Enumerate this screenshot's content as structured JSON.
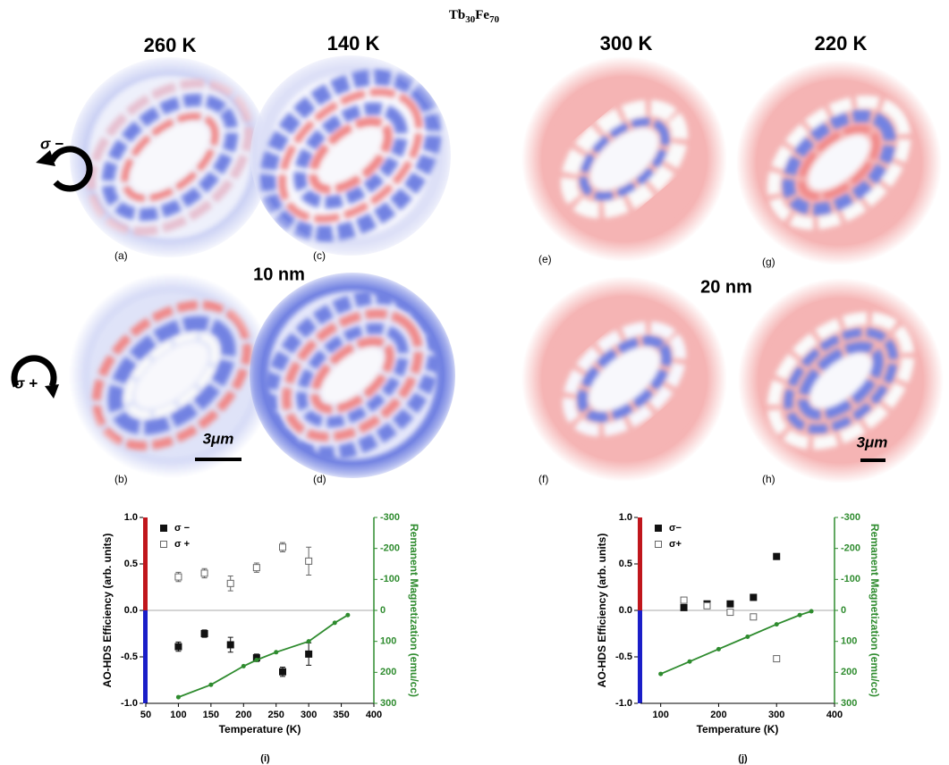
{
  "figure": {
    "title": [
      "Tb",
      "30",
      "Fe",
      "70"
    ],
    "temperatures": [
      "260 K",
      "140 K",
      "300 K",
      "220 K"
    ],
    "thicknesses": [
      "10 nm",
      "20 nm"
    ],
    "panel_labels": [
      "(a)",
      "(b)",
      "(c)",
      "(d)",
      "(e)",
      "(f)",
      "(g)",
      "(h)"
    ],
    "helicity_labels": [
      "σ −",
      "σ +"
    ],
    "scale_bars": [
      "3μm",
      "3μm"
    ]
  },
  "chart_data": [
    {
      "type": "scatter",
      "caption": "(i)",
      "xlabel": "Temperature (K)",
      "ylabel": "AO-HDS Efficiency (arb. units)",
      "y2label": "Remanent Magnetization (emu/cc)",
      "xlim": [
        50,
        400
      ],
      "xticks": [
        50,
        100,
        150,
        200,
        250,
        300,
        350,
        400
      ],
      "ylim": [
        -1,
        1
      ],
      "yticks": [
        {
          "value": -1,
          "label": "-1.0"
        },
        -0.5,
        {
          "value": 0,
          "label": "0.0"
        },
        0.5,
        {
          "value": 1,
          "label": "1.0"
        }
      ],
      "y2lim": [
        300,
        -300
      ],
      "y2ticks": [
        -300,
        -200,
        -100,
        0,
        100,
        200,
        300
      ],
      "zero_line": true,
      "legend": "upper left",
      "series": [
        {
          "name": "σ −",
          "marker": "filled-square",
          "color": "#111111",
          "x": [
            100,
            140,
            180,
            220,
            260,
            300
          ],
          "values": [
            -0.39,
            -0.25,
            -0.37,
            -0.51,
            -0.66,
            -0.47
          ],
          "errors": [
            0.05,
            0.04,
            0.08,
            0.04,
            0.05,
            0.12
          ]
        },
        {
          "name": "σ +",
          "marker": "open-square",
          "color": "#666666",
          "x": [
            100,
            140,
            180,
            220,
            260,
            300
          ],
          "values": [
            0.36,
            0.4,
            0.29,
            0.46,
            0.68,
            0.53
          ],
          "errors": [
            0.05,
            0.05,
            0.08,
            0.05,
            0.05,
            0.15
          ]
        },
        {
          "marker": "line",
          "axis": "y2",
          "color": "#2e8b2e",
          "x": [
            100,
            150,
            200,
            220,
            250,
            300,
            340,
            360
          ],
          "values": [
            280,
            240,
            180,
            160,
            135,
            100,
            40,
            15
          ]
        }
      ]
    },
    {
      "type": "scatter",
      "caption": "(j)",
      "xlabel": "Temperature (K)",
      "ylabel": "AO-HDS Efficiency (arb. units)",
      "y2label": "Remanent Magnetization (emu/cc)",
      "xlim": [
        65,
        400
      ],
      "xticks": [
        100,
        200,
        300,
        400
      ],
      "ylim": [
        -1,
        1
      ],
      "yticks": [
        {
          "value": -1,
          "label": "-1.0"
        },
        -0.5,
        {
          "value": 0,
          "label": "0.0"
        },
        0.5,
        {
          "value": 1,
          "label": "1.0"
        }
      ],
      "y2lim": [
        300,
        -300
      ],
      "y2ticks": [
        -300,
        -200,
        -100,
        0,
        100,
        200,
        300
      ],
      "zero_line": true,
      "legend": "upper left",
      "series": [
        {
          "name": "σ−",
          "marker": "filled-square",
          "color": "#111111",
          "x": [
            140,
            180,
            220,
            260,
            300
          ],
          "values": [
            0.03,
            0.07,
            0.07,
            0.14,
            0.58
          ]
        },
        {
          "name": "σ+",
          "marker": "open-square",
          "color": "#666666",
          "x": [
            140,
            180,
            220,
            260,
            300
          ],
          "values": [
            0.11,
            0.05,
            -0.02,
            -0.07,
            -0.52
          ]
        },
        {
          "marker": "line",
          "axis": "y2",
          "color": "#2e8b2e",
          "x": [
            100,
            150,
            200,
            250,
            300,
            340,
            360
          ],
          "values": [
            205,
            165,
            125,
            85,
            45,
            15,
            3
          ]
        }
      ]
    }
  ]
}
